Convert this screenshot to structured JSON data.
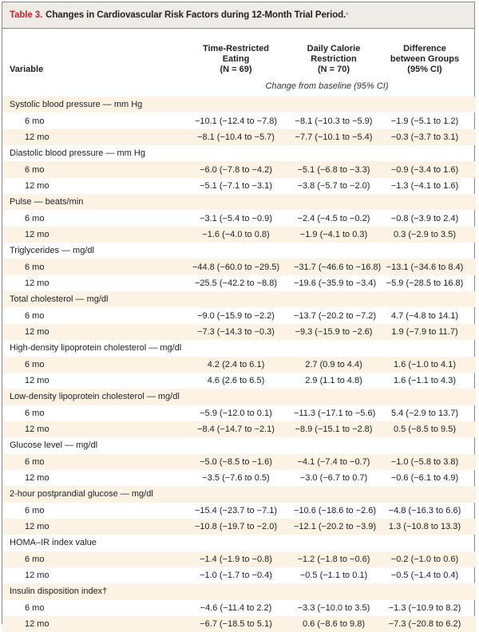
{
  "title": {
    "label": "Table 3.",
    "text": "Changes in Cardiovascular Risk Factors during 12-Month Trial Period.",
    "footnote_mark": "*"
  },
  "columns": {
    "variable": "Variable",
    "tre": [
      "Time-Restricted",
      "Eating",
      "(N = 69)"
    ],
    "dcr": [
      "Daily Calorie",
      "Restriction",
      "(N = 70)"
    ],
    "diff": [
      "Difference",
      "between Groups",
      "(95% CI)"
    ]
  },
  "subheader": "Change from baseline (95% CI)",
  "colors": {
    "title_label": "#c0282d",
    "stripe": "#fcf3e5",
    "title_bg": "#efece8"
  },
  "groups": [
    {
      "name": "Systolic blood pressure — mm Hg",
      "rows": [
        [
          "6 mo",
          "−10.1 (−12.4 to −7.8)",
          "−8.1 (−10.3 to −5.9)",
          "−1.9 (−5.1 to 1.2)"
        ],
        [
          "12 mo",
          "−8.1 (−10.4 to −5.7)",
          "−7.7 (−10.1 to −5.4)",
          "−0.3 (−3.7 to 3.1)"
        ]
      ]
    },
    {
      "name": "Diastolic blood pressure — mm Hg",
      "rows": [
        [
          "6 mo",
          "−6.0 (−7.8 to −4.2)",
          "−5.1 (−6.8 to −3.3)",
          "−0.9 (−3.4 to 1.6)"
        ],
        [
          "12 mo",
          "−5.1 (−7.1 to −3.1)",
          "−3.8 (−5.7 to −2.0)",
          "−1.3 (−4.1 to 1.6)"
        ]
      ]
    },
    {
      "name": "Pulse — beats/min",
      "rows": [
        [
          "6 mo",
          "−3.1 (−5.4 to −0.9)",
          "−2.4 (−4.5 to −0.2)",
          "−0.8 (−3.9 to 2.4)"
        ],
        [
          "12 mo",
          "−1.6 (−4.0 to 0.8)",
          "−1.9 (−4.1 to 0.3)",
          "0.3 (−2.9 to 3.5)"
        ]
      ]
    },
    {
      "name": "Triglycerides — mg/dl",
      "rows": [
        [
          "6 mo",
          "−44.8 (−60.0 to −29.5)",
          "−31.7 (−46.6 to −16.8)",
          "−13.1 (−34.6 to 8.4)"
        ],
        [
          "12 mo",
          "−25.5 (−42.2 to −8.8)",
          "−19.6 (−35.9 to −3.4)",
          "−5.9 (−28.5 to 16.8)"
        ]
      ]
    },
    {
      "name": "Total cholesterol — mg/dl",
      "rows": [
        [
          "6 mo",
          "−9.0 (−15.9 to −2.2)",
          "−13.7 (−20.2 to −7.2)",
          "4.7 (−4.8 to 14.1)"
        ],
        [
          "12 mo",
          "−7.3 (−14.3 to −0.3)",
          "−9.3 (−15.9 to −2.6)",
          "1.9 (−7.9 to 11.7)"
        ]
      ]
    },
    {
      "name": "High-density lipoprotein cholesterol — mg/dl",
      "rows": [
        [
          "6 mo",
          "4.2 (2.4 to 6.1)",
          "2.7 (0.9 to 4.4)",
          "1.6 (−1.0 to 4.1)"
        ],
        [
          "12 mo",
          "4.6 (2.6 to 6.5)",
          "2.9 (1.1 to 4.8)",
          "1.6 (−1.1 to 4.3)"
        ]
      ]
    },
    {
      "name": "Low-density lipoprotein cholesterol — mg/dl",
      "rows": [
        [
          "6 mo",
          "−5.9 (−12.0 to 0.1)",
          "−11.3 (−17.1 to −5.6)",
          "5.4 (−2.9 to 13.7)"
        ],
        [
          "12 mo",
          "−8.4 (−14.7 to −2.1)",
          "−8.9 (−15.1 to −2.8)",
          "0.5 (−8.5 to 9.5)"
        ]
      ]
    },
    {
      "name": "Glucose level — mg/dl",
      "rows": [
        [
          "6 mo",
          "−5.0 (−8.5 to −1.6)",
          "−4.1 (−7.4 to −0.7)",
          "−1.0 (−5.8 to 3.8)"
        ],
        [
          "12 mo",
          "−3.5 (−7.6 to 0.5)",
          "−3.0 (−6.7 to 0.7)",
          "−0.6 (−6.1 to 4.9)"
        ]
      ]
    },
    {
      "name": "2-hour postprandial glucose — mg/dl",
      "rows": [
        [
          "6 mo",
          "−15.4 (−23.7 to −7.1)",
          "−10.6 (−18.6 to −2.6)",
          "−4.8 (−16.3 to 6.6)"
        ],
        [
          "12 mo",
          "−10.8 (−19.7 to −2.0)",
          "−12.1 (−20.2 to −3.9)",
          "1.3 (−10.8 to 13.3)"
        ]
      ]
    },
    {
      "name": "HOMA–IR index value",
      "rows": [
        [
          "6 mo",
          "−1.4 (−1.9 to −0.8)",
          "−1.2 (−1.8 to −0.6)",
          "−0.2 (−1.0 to 0.6)"
        ],
        [
          "12 mo",
          "−1.0 (−1.7 to −0.4)",
          "−0.5 (−1.1 to 0.1)",
          "−0.5 (−1.4 to 0.4)"
        ]
      ]
    },
    {
      "name": "Insulin disposition index†",
      "rows": [
        [
          "6 mo",
          "−4.6 (−11.4 to 2.2)",
          "−3.3 (−10.0 to 3.5)",
          "−1.3 (−10.9 to 8.2)"
        ],
        [
          "12 mo",
          "−6.7 (−18.5 to 5.1)",
          "0.6 (−8.6 to 9.8)",
          "−7.3 (−20.8 to 6.2)"
        ]
      ]
    }
  ]
}
